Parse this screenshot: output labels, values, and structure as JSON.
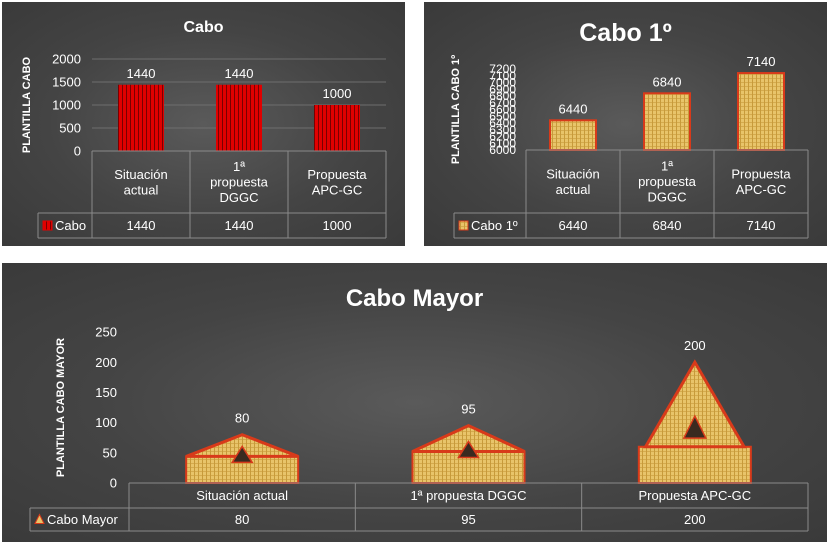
{
  "chart_data": [
    {
      "type": "bar",
      "title": "Cabo",
      "ylabel": "PLANTILLA CABO",
      "categories": [
        "Situación actual",
        "1ª propuesta DGGC",
        "Propuesta APC-GC"
      ],
      "category_lines": [
        [
          "Situación",
          "actual"
        ],
        [
          "1ª",
          "propuesta",
          "DGGC"
        ],
        [
          "Propuesta",
          "APC-GC"
        ]
      ],
      "series": [
        {
          "name": "Cabo",
          "values": [
            1440,
            1440,
            1000
          ]
        }
      ],
      "ylim": [
        0,
        2000
      ],
      "yticks": [
        0,
        500,
        1000,
        1500,
        2000
      ],
      "data_table": true,
      "grid": true,
      "colors": {
        "bar": "#e00000",
        "stripe": "#7a0000"
      }
    },
    {
      "type": "bar",
      "title": "Cabo 1º",
      "ylabel": "PLANTILLA CABO 1º",
      "categories": [
        "Situación actual",
        "1ª propuesta DGGC",
        "Propuesta APC-GC"
      ],
      "category_lines": [
        [
          "Situación",
          "actual"
        ],
        [
          "1ª",
          "propuesta",
          "DGGC"
        ],
        [
          "Propuesta",
          "APC-GC"
        ]
      ],
      "series": [
        {
          "name": "Cabo 1º",
          "values": [
            6440,
            6840,
            7140
          ]
        }
      ],
      "ylim": [
        6000,
        7200
      ],
      "yticks": [
        6000,
        6100,
        6200,
        6300,
        6400,
        6500,
        6600,
        6700,
        6800,
        6900,
        7000,
        7100,
        7200
      ],
      "data_table": true,
      "grid": false,
      "colors": {
        "bar": "#e8c46a",
        "stripe": "#c79a3a",
        "edge": "#d83a1a"
      }
    },
    {
      "type": "bar",
      "title": "Cabo Mayor",
      "ylabel": "PLANTILLA CABO MAYOR",
      "categories": [
        "Situación actual",
        "1ª propuesta DGGC",
        "Propuesta APC-GC"
      ],
      "category_lines": [
        [
          "Situación actual"
        ],
        [
          "1ª propuesta DGGC"
        ],
        [
          "Propuesta APC-GC"
        ]
      ],
      "series": [
        {
          "name": "Cabo Mayor",
          "values": [
            80,
            95,
            200
          ]
        }
      ],
      "ylim": [
        0,
        250
      ],
      "yticks": [
        0,
        50,
        100,
        150,
        200,
        250
      ],
      "data_table": true,
      "grid": false,
      "colors": {
        "bar": "#e8c46a",
        "stripe": "#c79a3a",
        "edge": "#d83a1a",
        "inner": "#3a2a20"
      }
    }
  ]
}
